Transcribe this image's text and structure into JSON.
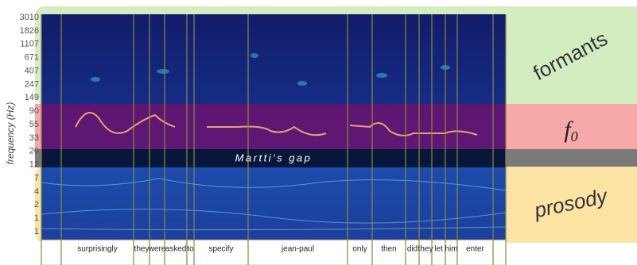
{
  "y_axis": {
    "label": "frequency (Hz)",
    "ticks": [
      "3010",
      "1826",
      "1107",
      "671",
      "407",
      "247",
      "149",
      "90",
      "55",
      "33",
      "20",
      "12",
      "7",
      "4",
      "2",
      "1",
      "1"
    ]
  },
  "bands": [
    {
      "label": "formants"
    },
    {
      "label": {
        "base": "f",
        "sub": "0"
      }
    },
    {
      "label": "prosody"
    }
  ],
  "gap_label": "Martti's gap",
  "words": [
    "surprisingly",
    "they",
    "were",
    "asked",
    "to",
    "specify",
    "jean-paul",
    "only",
    "then",
    "did",
    "they",
    "let",
    "him",
    "enter"
  ]
}
